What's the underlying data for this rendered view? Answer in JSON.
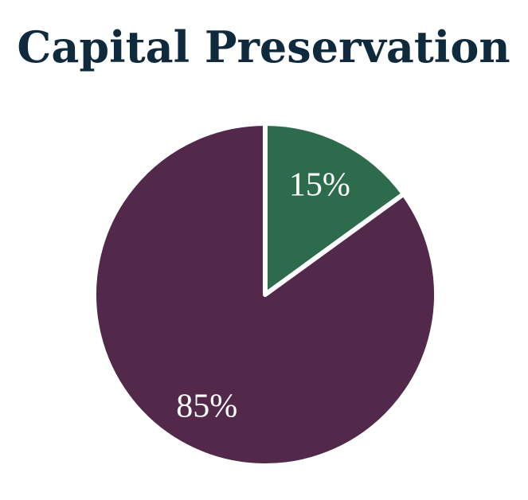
{
  "chart_data": {
    "type": "pie",
    "title": "Capital Preservation",
    "values": [
      15,
      85
    ],
    "value_labels": [
      "15%",
      "85%"
    ],
    "colors": [
      "#2d6b4d",
      "#52284b"
    ]
  }
}
